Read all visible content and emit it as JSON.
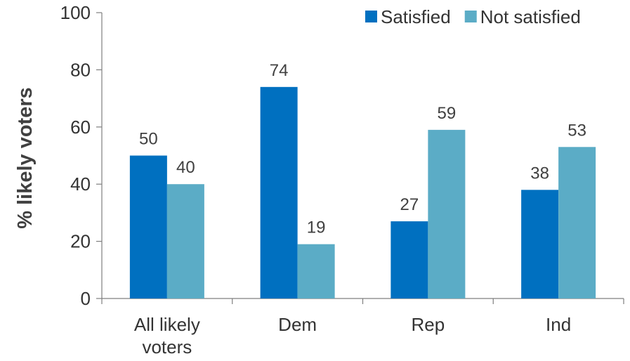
{
  "chart_data": {
    "type": "bar",
    "title": "",
    "xlabel": "",
    "ylabel": "% likely voters",
    "ylim": [
      0,
      100
    ],
    "yticks": [
      0,
      20,
      40,
      60,
      80,
      100
    ],
    "grid": false,
    "legend_position": "top-right",
    "categories": [
      [
        "All likely",
        "voters"
      ],
      [
        "Dem"
      ],
      [
        "Rep"
      ],
      [
        "Ind"
      ]
    ],
    "series": [
      {
        "name": "Satisfied",
        "color": "#0070C0",
        "values": [
          50,
          74,
          27,
          38
        ]
      },
      {
        "name": "Not satisfied",
        "color": "#5BACC6",
        "values": [
          40,
          19,
          59,
          53
        ]
      }
    ]
  }
}
